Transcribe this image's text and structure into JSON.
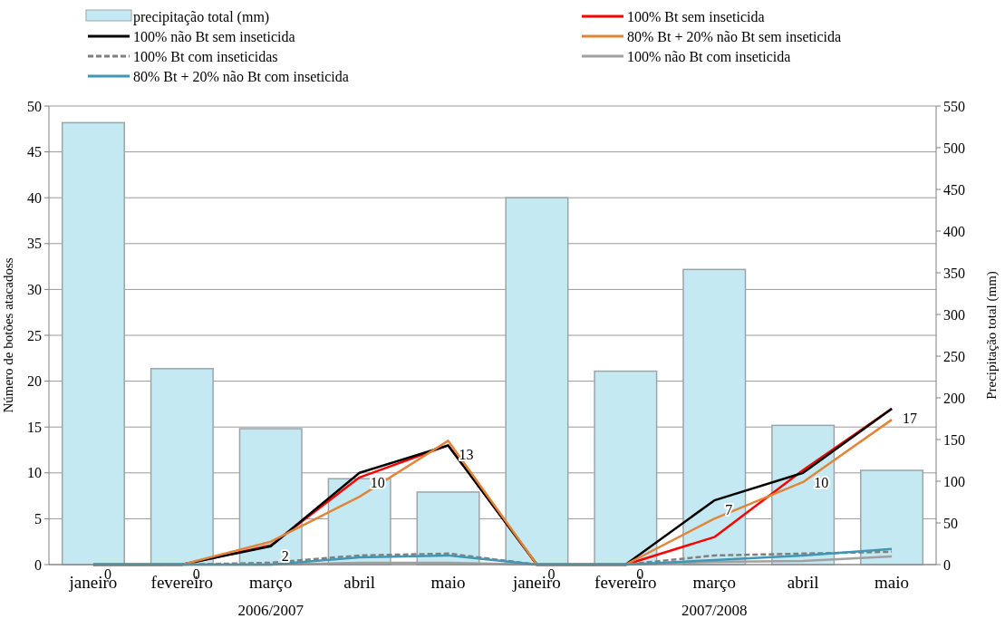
{
  "chart_data": {
    "type": "line",
    "categories": [
      "janeiro",
      "fevereiro",
      "março",
      "abril",
      "maio",
      "janeiro",
      "fevereiro",
      "março",
      "abril",
      "maio"
    ],
    "annotations": [
      "2006/2007",
      "2007/2008"
    ],
    "ylabel": "Número de botões atacadoss",
    "y2label": "Precipitação total (mm)",
    "ylim": [
      0,
      50
    ],
    "yticks": [
      0,
      5,
      10,
      15,
      20,
      25,
      30,
      35,
      40,
      45,
      50
    ],
    "y2lim": [
      0,
      550
    ],
    "y2ticks": [
      0,
      50,
      100,
      150,
      200,
      250,
      300,
      350,
      400,
      450,
      500,
      550
    ],
    "grid": "y",
    "legend": "top",
    "marker": "none",
    "series": [
      {
        "name": "precipitação total (mm)",
        "type": "bar",
        "axis": "y2",
        "color": "#c5e9f3",
        "values": [
          530,
          235,
          163,
          103,
          87,
          440,
          232,
          354,
          167,
          113
        ]
      },
      {
        "name": "100% Bt sem inseticida",
        "color": "#ff0000",
        "values": [
          0,
          0,
          2.1,
          9.5,
          13,
          0,
          0,
          3,
          10.3,
          17
        ]
      },
      {
        "name": "100% não Bt sem inseticida",
        "color": "#000000",
        "values": [
          0,
          0,
          2,
          10,
          13,
          0,
          0,
          7,
          10,
          17
        ],
        "value_labels": [
          "0",
          "0",
          "2",
          "10",
          "13",
          "0",
          "0",
          "7",
          "10",
          "17"
        ]
      },
      {
        "name": "80% Bt + 20%  não Bt sem inseticida",
        "color": "#e0863a",
        "values": [
          0,
          0,
          2.5,
          7.4,
          13.5,
          0,
          0,
          5,
          9,
          15.8
        ]
      },
      {
        "name": "100% Bt com inseticidas",
        "color": "#808080",
        "line_style": "dashed",
        "values": [
          0,
          0,
          0.2,
          1,
          1.2,
          0,
          0,
          1,
          1.2,
          1.4
        ]
      },
      {
        "name": "100% não Bt com inseticida",
        "color": "#a0a0a0",
        "values": [
          0,
          0,
          0,
          0.2,
          0.2,
          0,
          0,
          0.3,
          0.4,
          0.9
        ]
      },
      {
        "name": "80% Bt + 20%  não Bt com inseticida",
        "color": "#3f97b3",
        "values": [
          0,
          0,
          0,
          0.8,
          1,
          0,
          0,
          0.5,
          1,
          1.7
        ]
      }
    ]
  }
}
